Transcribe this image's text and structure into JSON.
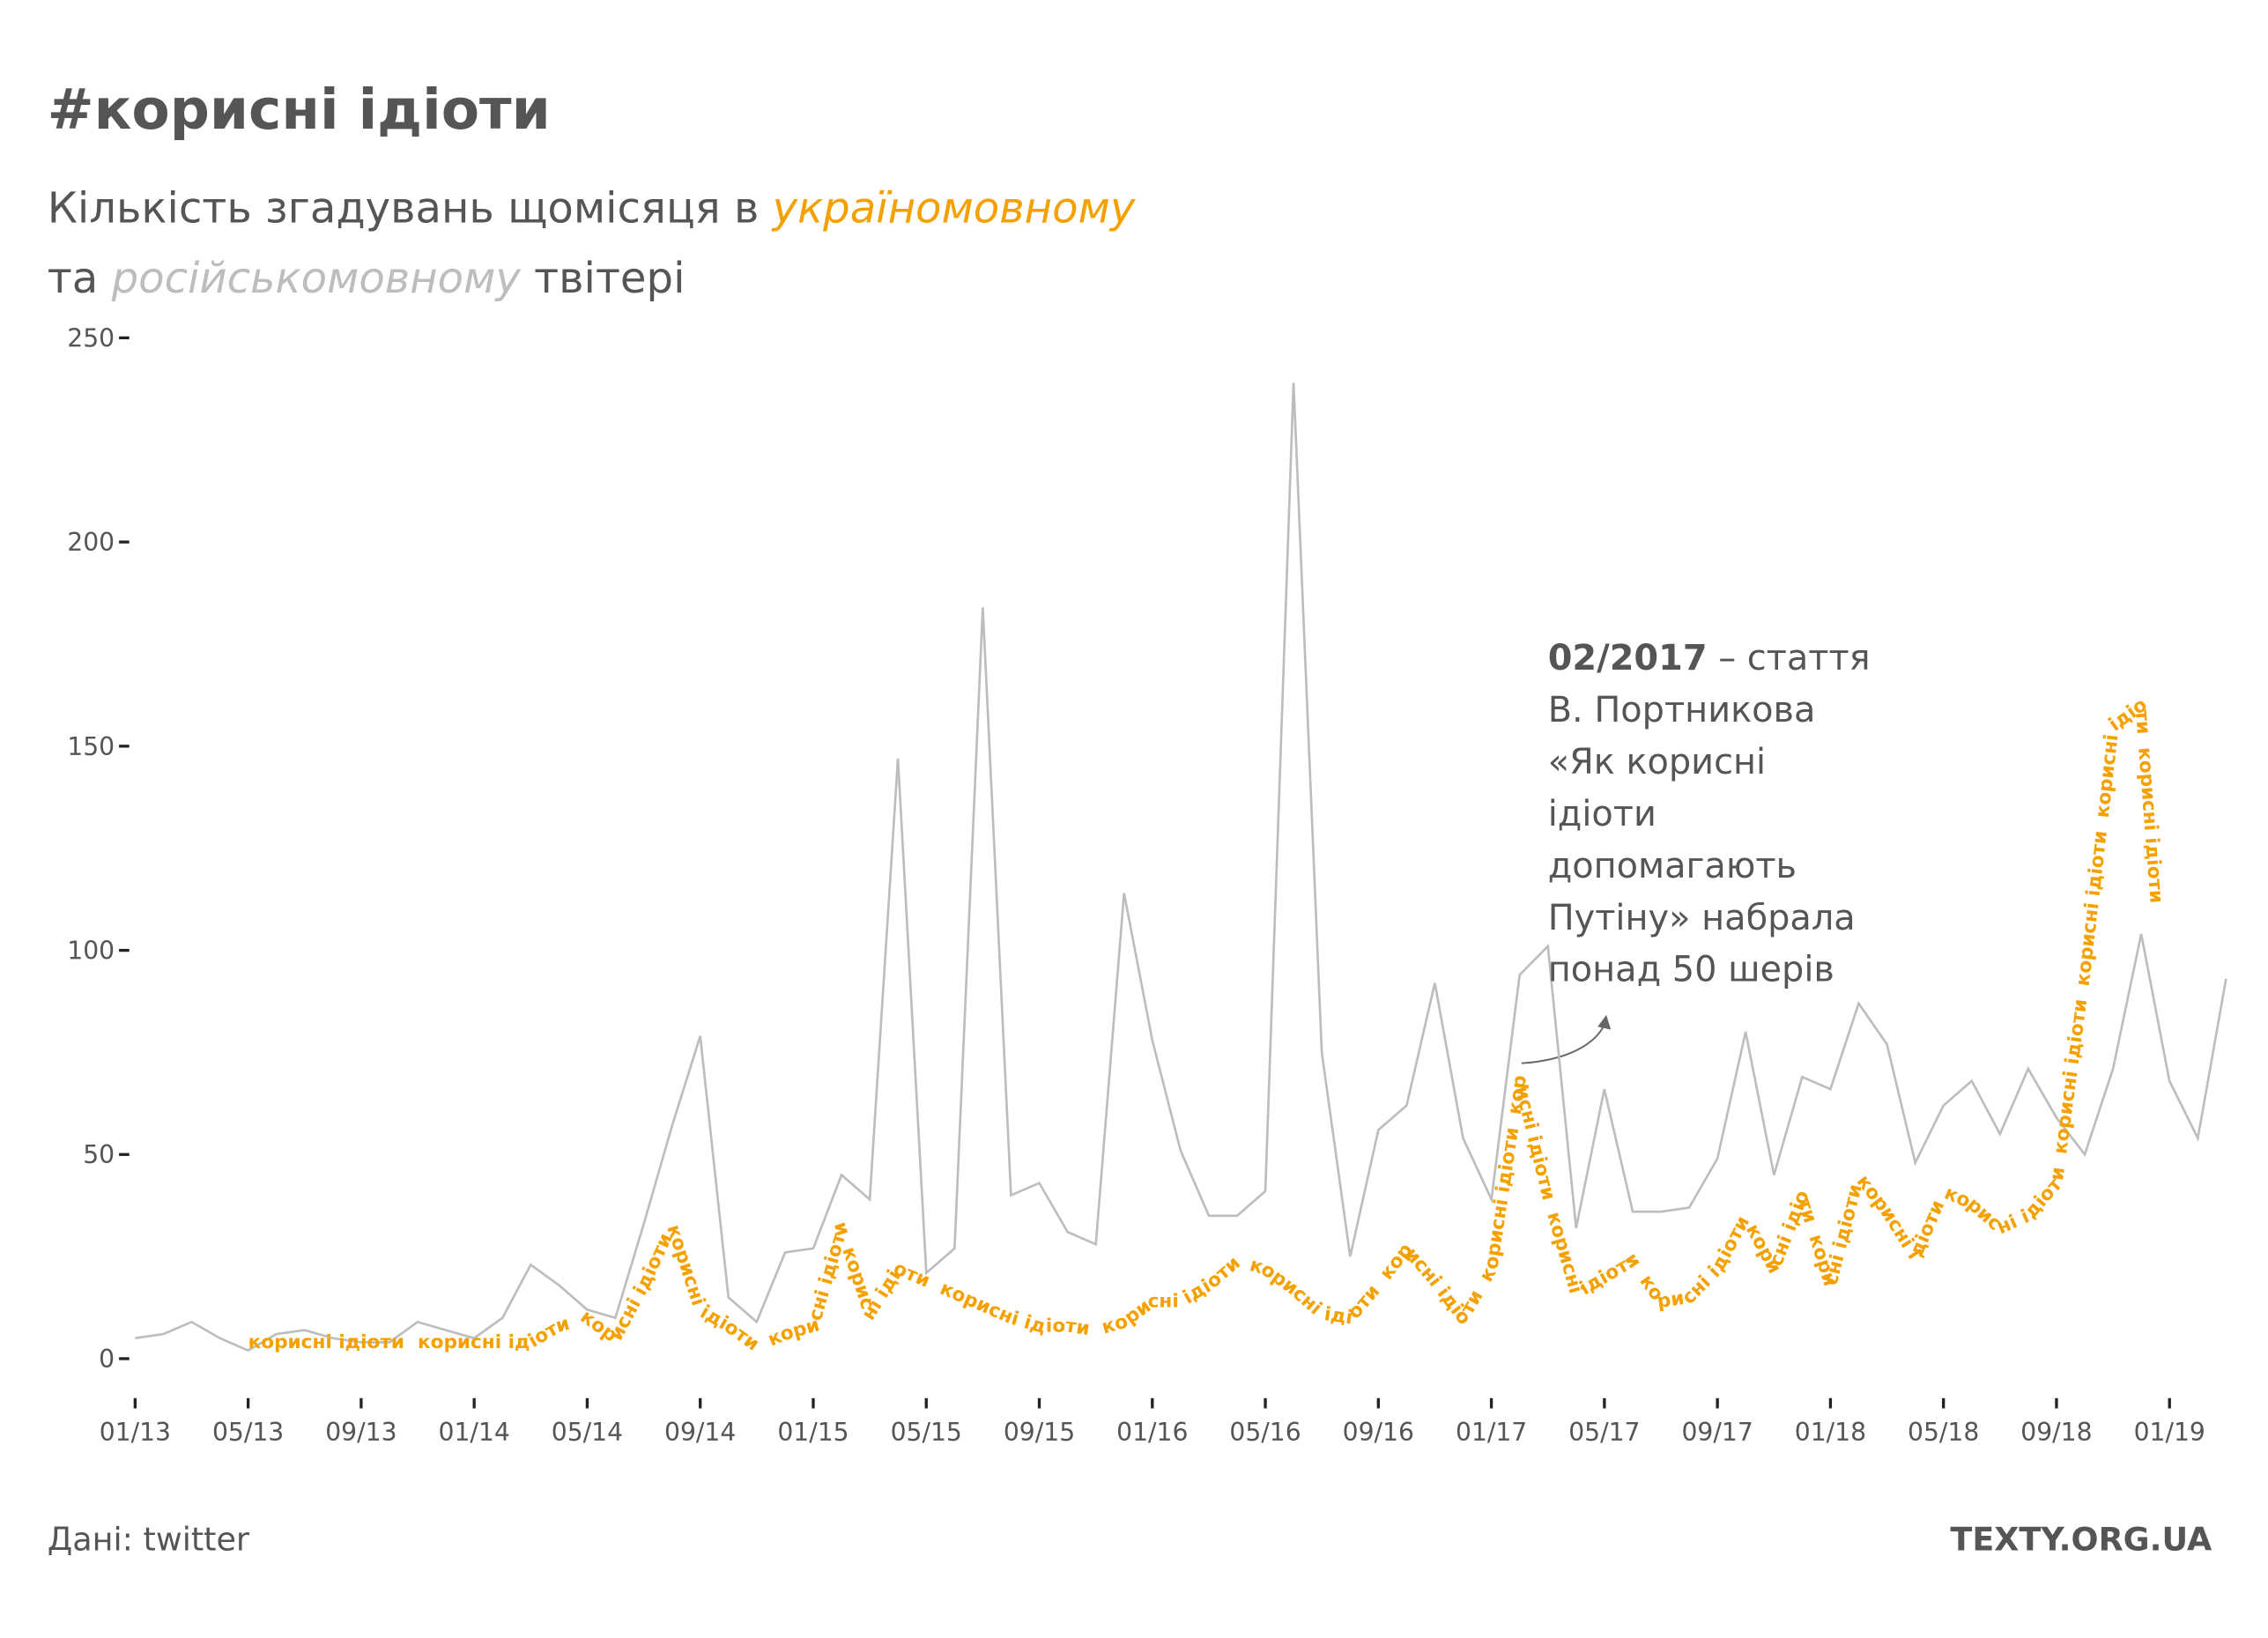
{
  "chart_data": {
    "type": "line",
    "title": "#корисні ідіоти",
    "subtitle": [
      "Кількість згадувань щомісяця в ",
      "та ",
      " твітері"
    ],
    "path_text": "корисні ідіоти",
    "annotation": {
      "bold": "02/2017",
      "lines": [
        " – стаття",
        "В. Портникова",
        "«Як корисні",
        "ідіоти",
        "допомагають",
        "Путіну» набрала",
        "понад 50 шерів"
      ]
    },
    "source": "Дані: twitter",
    "brand": "TEXTY.ORG.UA",
    "categories": [
      "01/13",
      null,
      null,
      null,
      "05/13",
      null,
      null,
      null,
      "09/13",
      null,
      null,
      null,
      "01/14",
      null,
      null,
      null,
      "05/14",
      null,
      null,
      null,
      "09/14",
      null,
      null,
      null,
      "01/15",
      null,
      null,
      null,
      "05/15",
      null,
      null,
      null,
      "09/15",
      null,
      null,
      null,
      "01/16",
      null,
      null,
      null,
      "05/16",
      null,
      null,
      null,
      "09/16",
      null,
      null,
      null,
      "01/17",
      null,
      null,
      null,
      "05/17",
      null,
      null,
      null,
      "09/17",
      null,
      null,
      null,
      "01/18",
      null,
      null,
      null,
      "05/18",
      null,
      null,
      null,
      "09/18",
      null,
      null,
      null,
      "01/19",
      null,
      null
    ],
    "series": [
      {
        "name": "україномовному",
        "color": "#f4a100",
        "values": [
          null,
          null,
          null,
          null,
          4,
          4,
          4,
          4,
          4,
          4,
          4,
          4,
          4,
          4,
          4,
          8,
          10,
          5,
          18,
          33,
          12,
          8,
          3,
          6,
          8,
          32,
          11,
          22,
          19,
          16,
          13,
          10,
          8,
          8,
          7,
          9,
          14,
          14,
          18,
          24,
          22,
          17,
          11,
          10,
          18,
          27,
          19,
          10,
          22,
          68,
          40,
          16,
          20,
          24,
          14,
          15,
          22,
          35,
          22,
          40,
          18,
          45,
          36,
          25,
          41,
          38,
          32,
          35,
          43,
          95,
          155,
          160,
          70,
          null,
          null
        ]
      },
      {
        "name": "російськомовному",
        "color": "#bdbdbd",
        "values": [
          5,
          6,
          9,
          5,
          2,
          6,
          7,
          5,
          4,
          4,
          9,
          7,
          5,
          10,
          23,
          18,
          12,
          10,
          33,
          57,
          79,
          15,
          9,
          26,
          27,
          45,
          39,
          147,
          21,
          27,
          184,
          40,
          43,
          31,
          28,
          114,
          78,
          51,
          35,
          35,
          41,
          239,
          75,
          25,
          56,
          62,
          92,
          54,
          39,
          94,
          101,
          32,
          66,
          36,
          36,
          37,
          49,
          80,
          45,
          69,
          66,
          87,
          77,
          48,
          62,
          68,
          55,
          71,
          59,
          50,
          71,
          104,
          68,
          54,
          93
        ]
      }
    ],
    "ylim": [
      0,
      250
    ],
    "yticks": [
      0,
      50,
      100,
      150,
      200,
      250
    ]
  }
}
